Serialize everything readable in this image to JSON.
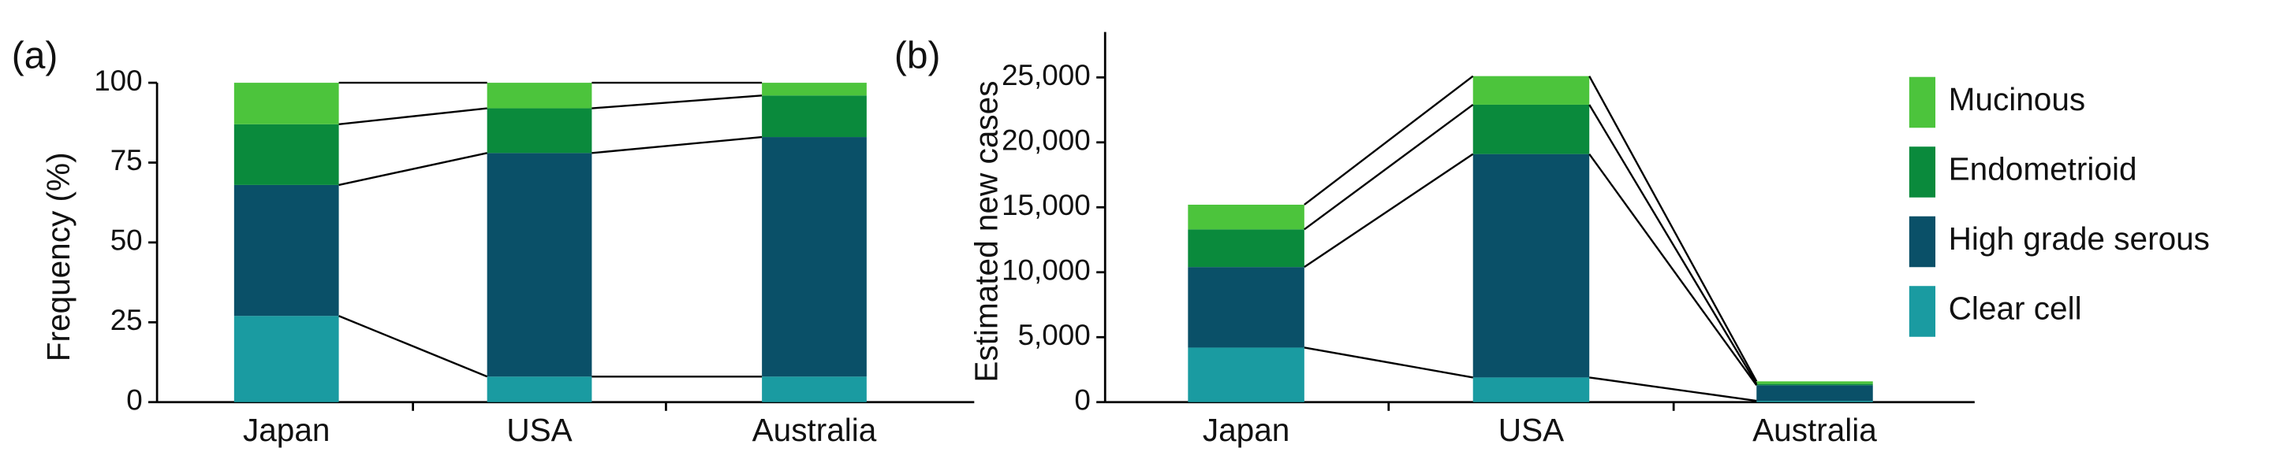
{
  "chart_data": [
    {
      "type": "stacked_bar",
      "panel_label": "(a)",
      "ylabel": "Frequency (%)",
      "categories": [
        "Japan",
        "USA",
        "Australia"
      ],
      "ylim": [
        0,
        100
      ],
      "yticks": [
        0,
        25,
        50,
        75,
        100
      ],
      "series": [
        {
          "color": "#1a9ba1",
          "values": [
            27,
            8,
            8
          ]
        },
        {
          "color": "#0a5068",
          "values": [
            41,
            70,
            75
          ]
        },
        {
          "color": "#0a8a3c",
          "values": [
            19,
            14,
            13
          ]
        },
        {
          "color": "#4cc43c",
          "values": [
            13,
            8,
            4
          ]
        }
      ]
    },
    {
      "type": "stacked_bar",
      "panel_label": "(b)",
      "ylabel": "Estimated new cases",
      "categories": [
        "Japan",
        "USA",
        "Australia"
      ],
      "ylim": [
        0,
        28500
      ],
      "yticks": [
        0,
        {
          "value": 5000,
          "label": "5,000"
        },
        {
          "value": 10000,
          "label": "10,000"
        },
        {
          "value": 15000,
          "label": "15,000"
        },
        {
          "value": 20000,
          "label": "20,000"
        },
        {
          "value": 25000,
          "label": "25,000"
        }
      ],
      "series": [
        {
          "name": "Clear cell",
          "color": "#1a9ba1",
          "values": [
            4200,
            1900,
            100
          ]
        },
        {
          "name": "High grade serous",
          "color": "#0a5068",
          "values": [
            6200,
            17200,
            1200
          ]
        },
        {
          "name": "Endometrioid",
          "color": "#0a8a3c",
          "values": [
            2900,
            3800,
            100
          ]
        },
        {
          "name": "Mucinous",
          "color": "#4cc43c",
          "values": [
            1900,
            2200,
            200
          ]
        }
      ]
    }
  ]
}
